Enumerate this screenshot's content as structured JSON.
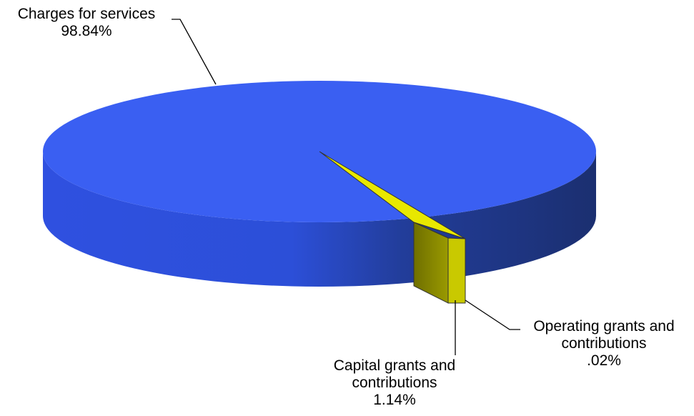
{
  "chart_data": {
    "type": "pie",
    "title": "",
    "slices": [
      {
        "label": "Charges for services",
        "value": 98.84,
        "value_text": "98.84%",
        "color": "#3a5ff2"
      },
      {
        "label": "Capital grants and contributions",
        "label_lines": [
          "Capital grants and",
          "contributions"
        ],
        "value": 1.14,
        "value_text": "1.14%",
        "color": "#e6e600"
      },
      {
        "label": "Operating grants and contributions",
        "label_lines": [
          "Operating grants and",
          "contributions"
        ],
        "value": 0.02,
        "value_text": ".02%",
        "color": "#1a1a1a"
      }
    ],
    "legend": "none"
  }
}
